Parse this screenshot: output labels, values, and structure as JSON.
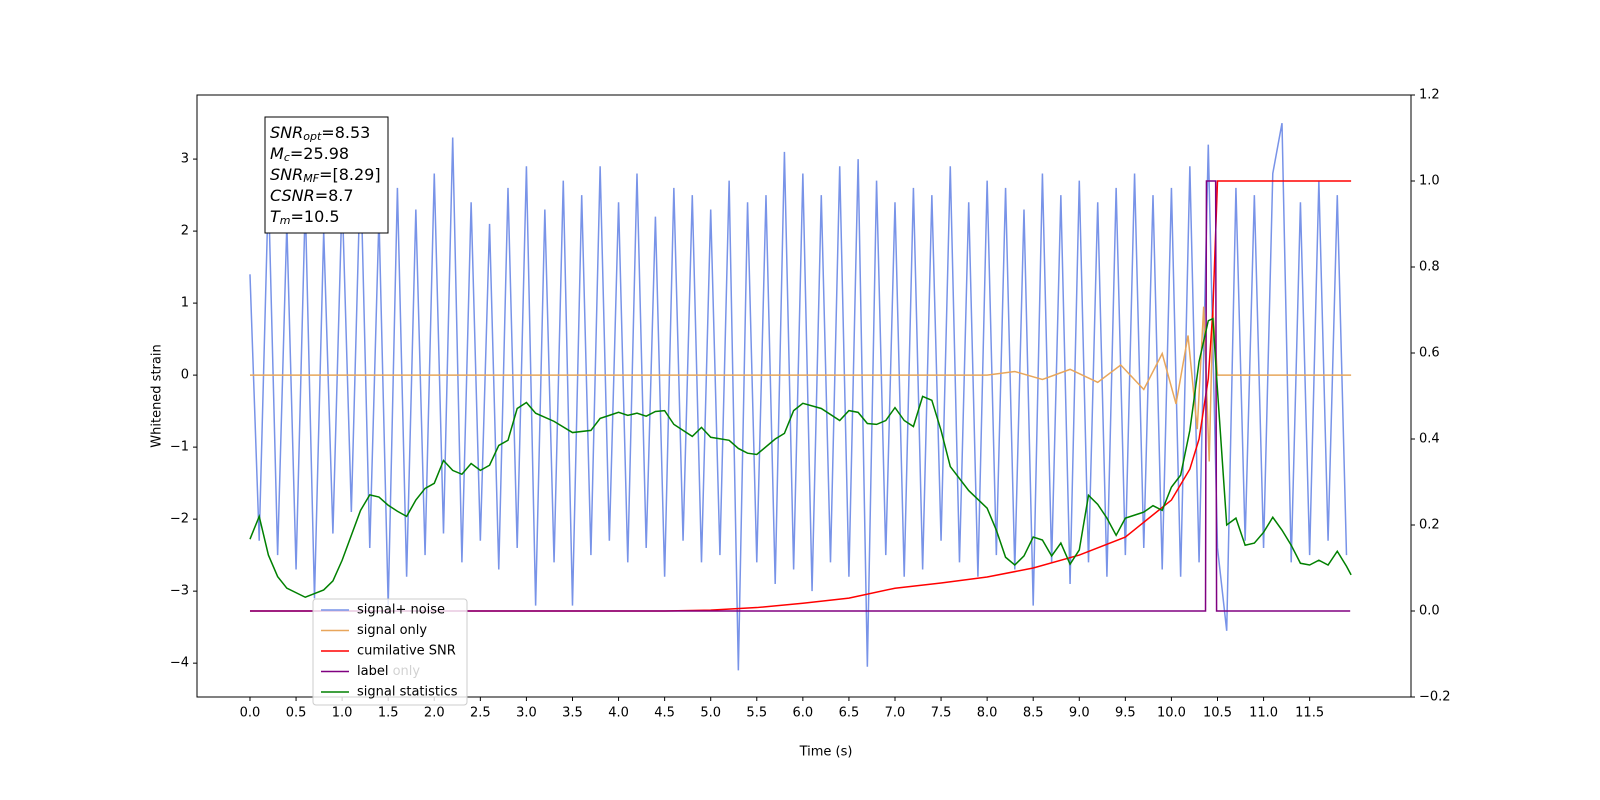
{
  "chart_data": {
    "type": "line",
    "xlabel": "Time (s)",
    "ylabel": "Whitened strain",
    "xlim": [
      -0.575,
      12.6
    ],
    "ylim": [
      -4.47,
      3.89
    ],
    "y2lim": [
      -0.2,
      1.2
    ],
    "xticks": [
      {
        "value": 0,
        "label": "0.0"
      },
      0.5,
      {
        "value": 1,
        "label": "1.0"
      },
      1.5,
      {
        "value": 2,
        "label": "2.0"
      },
      2.5,
      {
        "value": 3,
        "label": "3.0"
      },
      3.5,
      {
        "value": 4,
        "label": "4.0"
      },
      4.5,
      {
        "value": 5,
        "label": "5.0"
      },
      5.5,
      {
        "value": 6,
        "label": "6.0"
      },
      6.5,
      {
        "value": 7,
        "label": "7.0"
      },
      7.5,
      {
        "value": 8,
        "label": "8.0"
      },
      8.5,
      {
        "value": 9,
        "label": "9.0"
      },
      9.5,
      {
        "value": 10,
        "label": "10.0"
      },
      10.5,
      {
        "value": 11,
        "label": "11.0"
      },
      11.5
    ],
    "yticks": [
      {
        "value": -4,
        "label": "−4"
      },
      {
        "value": -3,
        "label": "−3"
      },
      {
        "value": -2,
        "label": "−2"
      },
      {
        "value": -1,
        "label": "−1"
      },
      0,
      1,
      2,
      3
    ],
    "y2ticks": [
      {
        "value": -0.2,
        "label": "−0.2"
      },
      {
        "value": 0,
        "label": "0.0"
      },
      0.2,
      0.4,
      0.6,
      0.8,
      {
        "value": 1,
        "label": "1.0"
      },
      1.2
    ],
    "legend": "lower left",
    "occluded_labels": [
      "label only"
    ],
    "info_box": [
      {
        "base": "SNR",
        "sub": "opt",
        "rest": "=8.53"
      },
      {
        "base": "M",
        "sub": "c",
        "rest": "=25.98"
      },
      {
        "base": "SNR",
        "sub": "MF",
        "rest": "=[8.29]"
      },
      {
        "base": "CSNR",
        "rest": "=8.7"
      },
      {
        "base": "T",
        "sub": "m",
        "rest": "=10.5"
      }
    ],
    "series": [
      {
        "name": "signal+ noise",
        "color": "#7893e8",
        "x": [
          0,
          0.1,
          0.2,
          0.3,
          0.4,
          0.5,
          0.6,
          0.7,
          0.8,
          0.9,
          1,
          1.1,
          1.2,
          1.3,
          1.4,
          1.5,
          1.6,
          1.7,
          1.8,
          1.9,
          2,
          2.1,
          2.2,
          2.3,
          2.4,
          2.5,
          2.6,
          2.7,
          2.8,
          2.9,
          3,
          3.1,
          3.2,
          3.3,
          3.4,
          3.5,
          3.6,
          3.7,
          3.8,
          3.9,
          4,
          4.1,
          4.2,
          4.3,
          4.4,
          4.5,
          4.6,
          4.7,
          4.8,
          4.9,
          5,
          5.1,
          5.2,
          5.3,
          5.4,
          5.5,
          5.6,
          5.7,
          5.8,
          5.9,
          6,
          6.1,
          6.2,
          6.3,
          6.4,
          6.5,
          6.6,
          6.7,
          6.8,
          6.9,
          7,
          7.1,
          7.2,
          7.3,
          7.4,
          7.5,
          7.6,
          7.7,
          7.8,
          7.9,
          8,
          8.1,
          8.2,
          8.3,
          8.4,
          8.5,
          8.6,
          8.7,
          8.8,
          8.9,
          9,
          9.1,
          9.2,
          9.3,
          9.4,
          9.5,
          9.6,
          9.7,
          9.8,
          9.9,
          10,
          10.1,
          10.2,
          10.3,
          10.4,
          10.5,
          10.6,
          10.7,
          10.8,
          10.9,
          11,
          11.1,
          11.2,
          11.3,
          11.4,
          11.5,
          11.6,
          11.7,
          11.8,
          11.9
        ],
        "values": [
          1.4,
          -2.3,
          2.6,
          -2.5,
          2.1,
          -2.7,
          2.4,
          -3.1,
          2.0,
          -2.2,
          2.5,
          -1.9,
          2.9,
          -2.4,
          2.2,
          -3.2,
          2.6,
          -2.8,
          2.3,
          -2.5,
          2.8,
          -2.2,
          3.3,
          -2.6,
          2.4,
          -2.3,
          2.1,
          -2.7,
          2.6,
          -2.4,
          2.9,
          -3.2,
          2.3,
          -2.6,
          2.7,
          -3.2,
          2.5,
          -2.5,
          2.9,
          -2.3,
          2.4,
          -2.6,
          2.8,
          -2.4,
          2.2,
          -2.8,
          2.6,
          -2.3,
          2.5,
          -2.6,
          2.3,
          -2.5,
          2.7,
          -4.1,
          2.4,
          -2.6,
          2.5,
          -2.9,
          3.1,
          -2.7,
          2.8,
          -3.0,
          2.5,
          -2.6,
          2.9,
          -2.8,
          3.0,
          -4.05,
          2.7,
          -2.5,
          2.4,
          -2.8,
          2.6,
          -2.7,
          2.5,
          -2.3,
          2.9,
          -2.6,
          2.4,
          -2.8,
          2.7,
          -2.5,
          2.6,
          -2.7,
          2.3,
          -3.2,
          2.8,
          -2.6,
          2.5,
          -2.9,
          2.7,
          -2.6,
          2.4,
          -2.8,
          2.6,
          -2.5,
          2.8,
          -2.4,
          2.5,
          -2.7,
          2.6,
          -2.8,
          2.9,
          -2.6,
          3.2,
          -2.4,
          -3.55,
          2.6,
          -2.3,
          2.5,
          -2.4,
          2.8,
          3.5,
          -2.6,
          2.4,
          -2.5,
          2.7,
          -2.3,
          2.5,
          -2.5
        ]
      },
      {
        "name": "signal only",
        "color": "#e8a65b",
        "x": [
          0,
          8.0,
          8.3,
          8.6,
          8.9,
          9.2,
          9.45,
          9.7,
          9.9,
          10.05,
          10.18,
          10.28,
          10.35,
          10.41,
          10.45,
          10.5,
          11.95
        ],
        "values": [
          0,
          0,
          0.05,
          -0.06,
          0.08,
          -0.1,
          0.14,
          -0.2,
          0.3,
          -0.4,
          0.55,
          -0.75,
          0.95,
          -1.2,
          0.9,
          0,
          0
        ]
      },
      {
        "name": "cumilative SNR",
        "color": "#ff0000",
        "axis": "y2",
        "x": [
          0,
          4.5,
          5.0,
          5.5,
          6.0,
          6.5,
          7.0,
          7.5,
          8.0,
          8.5,
          9.0,
          9.5,
          10.0,
          10.2,
          10.3,
          10.4,
          10.45,
          10.5,
          11.95
        ],
        "values": [
          0,
          0,
          0.002,
          0.008,
          0.018,
          0.03,
          0.053,
          0.065,
          0.079,
          0.1,
          0.13,
          0.172,
          0.258,
          0.33,
          0.4,
          0.54,
          0.7,
          1.0,
          1.0
        ]
      },
      {
        "name": "label",
        "color": "#800080",
        "axis": "y2",
        "x": [
          0,
          10.37,
          10.38,
          10.48,
          10.49,
          11.94
        ],
        "values": [
          0,
          0,
          1,
          1,
          0,
          0
        ]
      },
      {
        "name": "signal statistics",
        "color": "#008000",
        "axis": "y2",
        "x": [
          0,
          0.1,
          0.2,
          0.3,
          0.4,
          0.6,
          0.8,
          0.9,
          1.0,
          1.2,
          1.3,
          1.4,
          1.5,
          1.6,
          1.7,
          1.8,
          1.9,
          2.0,
          2.1,
          2.2,
          2.3,
          2.4,
          2.5,
          2.6,
          2.7,
          2.8,
          2.9,
          3.0,
          3.1,
          3.3,
          3.5,
          3.7,
          3.8,
          3.9,
          4.0,
          4.1,
          4.2,
          4.3,
          4.4,
          4.5,
          4.6,
          4.8,
          4.9,
          5.0,
          5.2,
          5.3,
          5.4,
          5.5,
          5.7,
          5.8,
          5.9,
          6.0,
          6.2,
          6.4,
          6.5,
          6.6,
          6.7,
          6.8,
          6.9,
          7.0,
          7.1,
          7.2,
          7.3,
          7.4,
          7.5,
          7.6,
          7.8,
          8.0,
          8.1,
          8.2,
          8.3,
          8.4,
          8.5,
          8.6,
          8.7,
          8.8,
          8.9,
          9.0,
          9.1,
          9.2,
          9.3,
          9.4,
          9.5,
          9.6,
          9.7,
          9.8,
          9.9,
          10.0,
          10.1,
          10.2,
          10.3,
          10.4,
          10.45,
          10.5,
          10.6,
          10.7,
          10.8,
          10.9,
          11.0,
          11.1,
          11.2,
          11.3,
          11.4,
          11.5,
          11.6,
          11.7,
          11.8,
          11.9,
          11.95
        ],
        "values": [
          0.167,
          0.22,
          0.13,
          0.08,
          0.053,
          0.032,
          0.049,
          0.07,
          0.118,
          0.234,
          0.27,
          0.265,
          0.246,
          0.232,
          0.22,
          0.258,
          0.285,
          0.297,
          0.35,
          0.327,
          0.318,
          0.343,
          0.327,
          0.339,
          0.385,
          0.397,
          0.471,
          0.485,
          0.46,
          0.441,
          0.415,
          0.42,
          0.448,
          0.455,
          0.462,
          0.455,
          0.46,
          0.453,
          0.464,
          0.466,
          0.434,
          0.406,
          0.427,
          0.404,
          0.397,
          0.378,
          0.367,
          0.364,
          0.4,
          0.413,
          0.466,
          0.483,
          0.471,
          0.443,
          0.466,
          0.462,
          0.436,
          0.434,
          0.443,
          0.473,
          0.443,
          0.429,
          0.499,
          0.49,
          0.42,
          0.336,
          0.28,
          0.239,
          0.188,
          0.125,
          0.107,
          0.128,
          0.172,
          0.165,
          0.128,
          0.158,
          0.109,
          0.142,
          0.269,
          0.248,
          0.216,
          0.176,
          0.216,
          0.223,
          0.23,
          0.245,
          0.234,
          0.288,
          0.316,
          0.42,
          0.58,
          0.675,
          0.68,
          0.513,
          0.2,
          0.216,
          0.153,
          0.158,
          0.183,
          0.218,
          0.188,
          0.153,
          0.111,
          0.107,
          0.118,
          0.107,
          0.139,
          0.104,
          0.084
        ]
      }
    ]
  }
}
